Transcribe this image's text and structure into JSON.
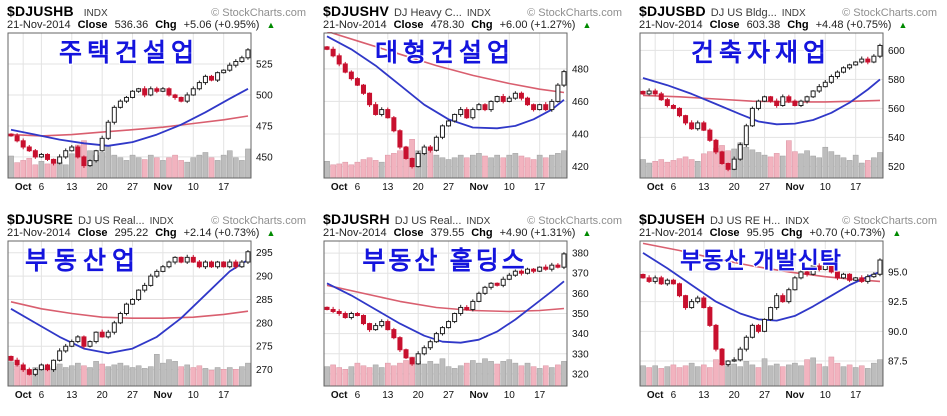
{
  "source": "© StockCharts.com",
  "labels": {
    "close": "Close",
    "chg": "Chg",
    "up_arrow": "▲"
  },
  "charts": [
    {
      "symbol": "$DJUSHB",
      "name": "",
      "exchange": "INDX",
      "date": "21-Nov-2014",
      "close": "536.36",
      "chg": "+5.06 (+0.95%)",
      "annotation": "주택건설업"
    },
    {
      "symbol": "$DJUSHV",
      "name": "DJ Heavy C...",
      "exchange": "INDX",
      "date": "21-Nov-2014",
      "close": "478.30",
      "chg": "+6.00 (+1.27%)",
      "annotation": "대형건설업"
    },
    {
      "symbol": "$DJUSBD",
      "name": "DJ US Bldg...",
      "exchange": "INDX",
      "date": "21-Nov-2014",
      "close": "603.38",
      "chg": "+4.48 (+0.75%)",
      "annotation": "건축자재업"
    },
    {
      "symbol": "$DJUSRE",
      "name": "DJ US Real...",
      "exchange": "INDX",
      "date": "21-Nov-2014",
      "close": "295.22",
      "chg": "+2.14 (+0.73%)",
      "annotation": "부동산업"
    },
    {
      "symbol": "$DJUSRH",
      "name": "DJ US Real...",
      "exchange": "INDX",
      "date": "21-Nov-2014",
      "close": "379.55",
      "chg": "+4.90 (+1.31%)",
      "annotation": "부동산 홀딩스"
    },
    {
      "symbol": "$DJUSEH",
      "name": "DJ US RE H...",
      "exchange": "INDX",
      "date": "21-Nov-2014",
      "close": "95.95",
      "chg": "+0.70 (+0.73%)",
      "annotation": "부동산 개발신탁"
    }
  ],
  "x_axis": {
    "labels": [
      "Oct",
      "6",
      "13",
      "20",
      "27",
      "Nov",
      "10",
      "17"
    ],
    "indices": [
      2,
      5,
      10,
      15,
      20,
      25,
      30,
      35
    ],
    "bold": [
      1,
      0,
      0,
      0,
      0,
      1,
      0,
      0
    ]
  },
  "colors": {
    "candle_down": "#c8102e",
    "candle_up_stroke": "#222222",
    "candle_up_fill": "#ffffff",
    "ma_blue": "#3038c8",
    "ma_red": "#d95f6f",
    "volume_up": "#bdbdbd",
    "volume_down": "#f2b3bf",
    "grid": "#e3e3e3",
    "border": "#666666",
    "annotation_blue": "#1414dd",
    "change_green": "#008a00"
  },
  "chart_data": [
    {
      "type": "candlestick",
      "title": "$DJUSHB",
      "legend_position": "none",
      "grid": true,
      "ylim": [
        433,
        550
      ],
      "ytick_values": [
        450,
        475,
        500,
        525
      ],
      "ytick_labels": [
        "450",
        "475",
        "500",
        "525"
      ],
      "closes": [
        467,
        463,
        458,
        455,
        450,
        452,
        448,
        445,
        450,
        455,
        458,
        450,
        443,
        447,
        455,
        465,
        478,
        490,
        495,
        498,
        503,
        505,
        500,
        505,
        503,
        505,
        500,
        498,
        495,
        500,
        505,
        510,
        515,
        512,
        518,
        520,
        524,
        527,
        530,
        536.4
      ],
      "volume": [
        0.5,
        0.35,
        0.4,
        0.45,
        0.3,
        0.38,
        0.32,
        0.42,
        0.36,
        0.3,
        0.55,
        0.75,
        0.85,
        0.62,
        0.52,
        0.58,
        0.72,
        0.52,
        0.46,
        0.4,
        0.52,
        0.46,
        0.42,
        0.52,
        0.46,
        0.4,
        0.46,
        0.52,
        0.4,
        0.36,
        0.46,
        0.52,
        0.58,
        0.46,
        0.4,
        0.52,
        0.62,
        0.46,
        0.4,
        0.66
      ],
      "ma_blue": [
        [
          0,
          472
        ],
        [
          4,
          468
        ],
        [
          8,
          464
        ],
        [
          12,
          461
        ],
        [
          16,
          459
        ],
        [
          20,
          462
        ],
        [
          24,
          468
        ],
        [
          28,
          476
        ],
        [
          32,
          486
        ],
        [
          36,
          497
        ],
        [
          39,
          505
        ]
      ],
      "ma_red": [
        [
          0,
          468
        ],
        [
          5,
          467
        ],
        [
          10,
          468
        ],
        [
          15,
          470
        ],
        [
          20,
          472
        ],
        [
          25,
          474
        ],
        [
          30,
          477
        ],
        [
          35,
          480
        ],
        [
          39,
          483
        ]
      ]
    },
    {
      "type": "candlestick",
      "title": "$DJUSHV",
      "legend_position": "none",
      "grid": true,
      "ylim": [
        413,
        502
      ],
      "ytick_values": [
        420,
        440,
        460,
        480
      ],
      "ytick_labels": [
        "420",
        "440",
        "460",
        "480"
      ],
      "closes": [
        492,
        488,
        483,
        478,
        474,
        470,
        465,
        458,
        452,
        455,
        450,
        442,
        432,
        425,
        420,
        428,
        432,
        430,
        438,
        445,
        448,
        452,
        455,
        450,
        455,
        458,
        455,
        460,
        463,
        460,
        462,
        465,
        462,
        458,
        455,
        458,
        455,
        460,
        470,
        478.3
      ],
      "volume": [
        0.38,
        0.3,
        0.32,
        0.36,
        0.3,
        0.36,
        0.42,
        0.46,
        0.4,
        0.36,
        0.52,
        0.56,
        0.62,
        0.68,
        0.88,
        0.62,
        0.56,
        0.6,
        0.52,
        0.46,
        0.42,
        0.46,
        0.52,
        0.46,
        0.52,
        0.56,
        0.5,
        0.46,
        0.52,
        0.46,
        0.52,
        0.56,
        0.5,
        0.46,
        0.42,
        0.52,
        0.46,
        0.52,
        0.56,
        0.62
      ],
      "ma_blue": [
        [
          0,
          500
        ],
        [
          4,
          492
        ],
        [
          8,
          482
        ],
        [
          12,
          470
        ],
        [
          16,
          458
        ],
        [
          20,
          449
        ],
        [
          24,
          444
        ],
        [
          28,
          443.5
        ],
        [
          31,
          445
        ],
        [
          34,
          449
        ],
        [
          37,
          455
        ],
        [
          39,
          461
        ]
      ],
      "ma_red": [
        [
          0,
          503
        ],
        [
          6,
          496
        ],
        [
          12,
          489
        ],
        [
          18,
          482
        ],
        [
          24,
          476
        ],
        [
          30,
          471
        ],
        [
          35,
          467.5
        ],
        [
          39,
          465.5
        ]
      ]
    },
    {
      "type": "candlestick",
      "title": "$DJUSBD",
      "legend_position": "none",
      "grid": true,
      "ylim": [
        512,
        612
      ],
      "ytick_values": [
        520,
        540,
        560,
        580,
        600
      ],
      "ytick_labels": [
        "520",
        "540",
        "560",
        "580",
        "600"
      ],
      "closes": [
        570,
        572,
        570,
        566,
        562,
        560,
        555,
        550,
        546,
        550,
        545,
        538,
        530,
        522,
        518,
        525,
        535,
        548,
        560,
        565,
        568,
        565,
        562,
        568,
        565,
        562,
        565,
        568,
        572,
        575,
        578,
        582,
        585,
        588,
        590,
        592,
        594,
        592,
        596,
        603.4
      ],
      "volume": [
        0.42,
        0.34,
        0.38,
        0.42,
        0.36,
        0.4,
        0.44,
        0.48,
        0.42,
        0.38,
        0.55,
        0.6,
        0.68,
        0.74,
        0.62,
        0.66,
        0.8,
        0.7,
        0.64,
        0.58,
        0.52,
        0.48,
        0.56,
        0.5,
        0.85,
        0.6,
        0.55,
        0.62,
        0.5,
        0.46,
        0.7,
        0.6,
        0.52,
        0.46,
        0.4,
        0.52,
        0.34,
        0.4,
        0.46,
        0.58
      ],
      "ma_blue": [
        [
          0,
          581
        ],
        [
          4,
          576
        ],
        [
          8,
          570
        ],
        [
          12,
          563
        ],
        [
          16,
          556
        ],
        [
          19,
          551
        ],
        [
          22,
          549
        ],
        [
          25,
          549.5
        ],
        [
          28,
          552
        ],
        [
          31,
          557
        ],
        [
          34,
          564
        ],
        [
          37,
          573
        ],
        [
          39,
          580
        ]
      ],
      "ma_red": [
        [
          0,
          569
        ],
        [
          6,
          568
        ],
        [
          12,
          566.5
        ],
        [
          18,
          565
        ],
        [
          24,
          564.5
        ],
        [
          30,
          564.5
        ],
        [
          35,
          565
        ],
        [
          39,
          565.5
        ]
      ]
    },
    {
      "type": "candlestick",
      "title": "$DJUSRE",
      "legend_position": "none",
      "grid": true,
      "ylim": [
        266.5,
        297.5
      ],
      "ytick_values": [
        270,
        275,
        280,
        285,
        290,
        295
      ],
      "ytick_labels": [
        "270",
        "275",
        "280",
        "285",
        "290",
        "295"
      ],
      "closes": [
        272,
        271,
        270,
        269,
        270,
        271,
        270,
        272,
        274,
        275,
        276,
        277,
        275,
        276,
        278,
        277,
        278,
        280,
        282,
        284,
        285,
        287,
        288,
        290,
        291,
        292,
        293,
        294,
        293,
        294,
        293,
        292,
        293,
        292,
        293,
        292,
        293,
        292,
        293,
        295.2
      ],
      "volume": [
        0.55,
        0.45,
        0.4,
        0.36,
        0.42,
        0.46,
        0.4,
        0.44,
        0.5,
        0.42,
        0.46,
        0.52,
        0.46,
        0.42,
        0.56,
        0.5,
        0.44,
        0.48,
        0.52,
        0.46,
        0.42,
        0.46,
        0.4,
        0.44,
        0.72,
        0.52,
        0.6,
        0.56,
        0.44,
        0.48,
        0.42,
        0.46,
        0.4,
        0.36,
        0.42,
        0.38,
        0.42,
        0.38,
        0.44,
        0.52
      ],
      "ma_blue": [
        [
          0,
          283
        ],
        [
          4,
          280
        ],
        [
          8,
          277
        ],
        [
          12,
          274.5
        ],
        [
          16,
          273.5
        ],
        [
          20,
          274.5
        ],
        [
          24,
          277
        ],
        [
          28,
          281
        ],
        [
          32,
          286
        ],
        [
          36,
          291
        ],
        [
          39,
          293.5
        ]
      ],
      "ma_red": [
        [
          0,
          284.5
        ],
        [
          5,
          283
        ],
        [
          10,
          282
        ],
        [
          15,
          281.2
        ],
        [
          20,
          281
        ],
        [
          25,
          281
        ],
        [
          30,
          281.2
        ],
        [
          35,
          281.8
        ],
        [
          39,
          282.5
        ]
      ]
    },
    {
      "type": "candlestick",
      "title": "$DJUSRH",
      "legend_position": "none",
      "grid": true,
      "ylim": [
        314,
        386
      ],
      "ytick_values": [
        320,
        330,
        340,
        350,
        360,
        370,
        380
      ],
      "ytick_labels": [
        "320",
        "330",
        "340",
        "350",
        "360",
        "370",
        "380"
      ],
      "closes": [
        352,
        351,
        350,
        348,
        350,
        349,
        345,
        342,
        344,
        346,
        342,
        338,
        332,
        328,
        325,
        330,
        333,
        336,
        340,
        343,
        346,
        350,
        353,
        352,
        356,
        360,
        363,
        365,
        364,
        367,
        369,
        371,
        370,
        372,
        371,
        373,
        372,
        374,
        373,
        379.6
      ],
      "volume": [
        0.44,
        0.48,
        0.42,
        0.38,
        0.44,
        0.52,
        0.46,
        0.42,
        0.48,
        0.42,
        0.52,
        0.46,
        0.52,
        0.58,
        0.66,
        0.56,
        0.5,
        0.56,
        0.5,
        0.62,
        0.44,
        0.4,
        0.46,
        0.52,
        0.58,
        0.52,
        0.62,
        0.56,
        0.5,
        0.56,
        0.6,
        0.52,
        0.46,
        0.52,
        0.44,
        0.4,
        0.46,
        0.42,
        0.48,
        0.56
      ],
      "ma_blue": [
        [
          0,
          365
        ],
        [
          4,
          359
        ],
        [
          8,
          352
        ],
        [
          12,
          345
        ],
        [
          16,
          339
        ],
        [
          19,
          336
        ],
        [
          22,
          335.5
        ],
        [
          25,
          337
        ],
        [
          28,
          341
        ],
        [
          31,
          347
        ],
        [
          34,
          354
        ],
        [
          37,
          361
        ],
        [
          39,
          366
        ]
      ],
      "ma_red": [
        [
          0,
          364
        ],
        [
          6,
          360
        ],
        [
          12,
          356
        ],
        [
          18,
          353
        ],
        [
          24,
          351.5
        ],
        [
          30,
          351
        ],
        [
          35,
          351.5
        ],
        [
          39,
          352.5
        ]
      ]
    },
    {
      "type": "candlestick",
      "title": "$DJUSEH",
      "legend_position": "none",
      "grid": true,
      "ylim": [
        85.4,
        97.6
      ],
      "ytick_values": [
        87.5,
        90.0,
        92.5,
        95.0
      ],
      "ytick_labels": [
        "87.5",
        "90.0",
        "92.5",
        "95.0"
      ],
      "closes": [
        94.5,
        94.2,
        94.5,
        94.0,
        94.3,
        94.0,
        93.0,
        92.0,
        92.5,
        92.8,
        92.0,
        90.5,
        88.5,
        87.2,
        87.5,
        87.6,
        88.5,
        89.5,
        90.5,
        90.0,
        91.0,
        92.0,
        93.0,
        92.5,
        93.5,
        94.5,
        95.0,
        94.8,
        95.5,
        95.2,
        95.6,
        95.0,
        94.5,
        94.8,
        94.3,
        94.5,
        94.2,
        94.6,
        94.8,
        96.0
      ],
      "volume": [
        0.46,
        0.42,
        0.46,
        0.4,
        0.44,
        0.48,
        0.42,
        0.46,
        0.52,
        0.44,
        0.48,
        0.42,
        0.6,
        0.52,
        0.46,
        0.5,
        0.44,
        0.56,
        0.48,
        0.42,
        0.62,
        0.46,
        0.5,
        0.44,
        0.48,
        0.52,
        0.46,
        0.6,
        0.64,
        0.5,
        0.44,
        0.66,
        0.52,
        0.44,
        0.48,
        0.42,
        0.46,
        0.4,
        0.52,
        0.6
      ],
      "ma_blue": [
        [
          0,
          96.6
        ],
        [
          4,
          95.3
        ],
        [
          8,
          93.9
        ],
        [
          12,
          92.5
        ],
        [
          16,
          91.5
        ],
        [
          19,
          91.0
        ],
        [
          22,
          90.9
        ],
        [
          25,
          91.3
        ],
        [
          28,
          92.1
        ],
        [
          31,
          93.0
        ],
        [
          34,
          93.9
        ],
        [
          37,
          94.6
        ],
        [
          39,
          95.0
        ]
      ],
      "ma_red": [
        [
          0,
          97.4
        ],
        [
          6,
          96.8
        ],
        [
          12,
          96.1
        ],
        [
          18,
          95.5
        ],
        [
          24,
          95.0
        ],
        [
          30,
          94.6
        ],
        [
          35,
          94.35
        ],
        [
          39,
          94.2
        ]
      ]
    }
  ]
}
